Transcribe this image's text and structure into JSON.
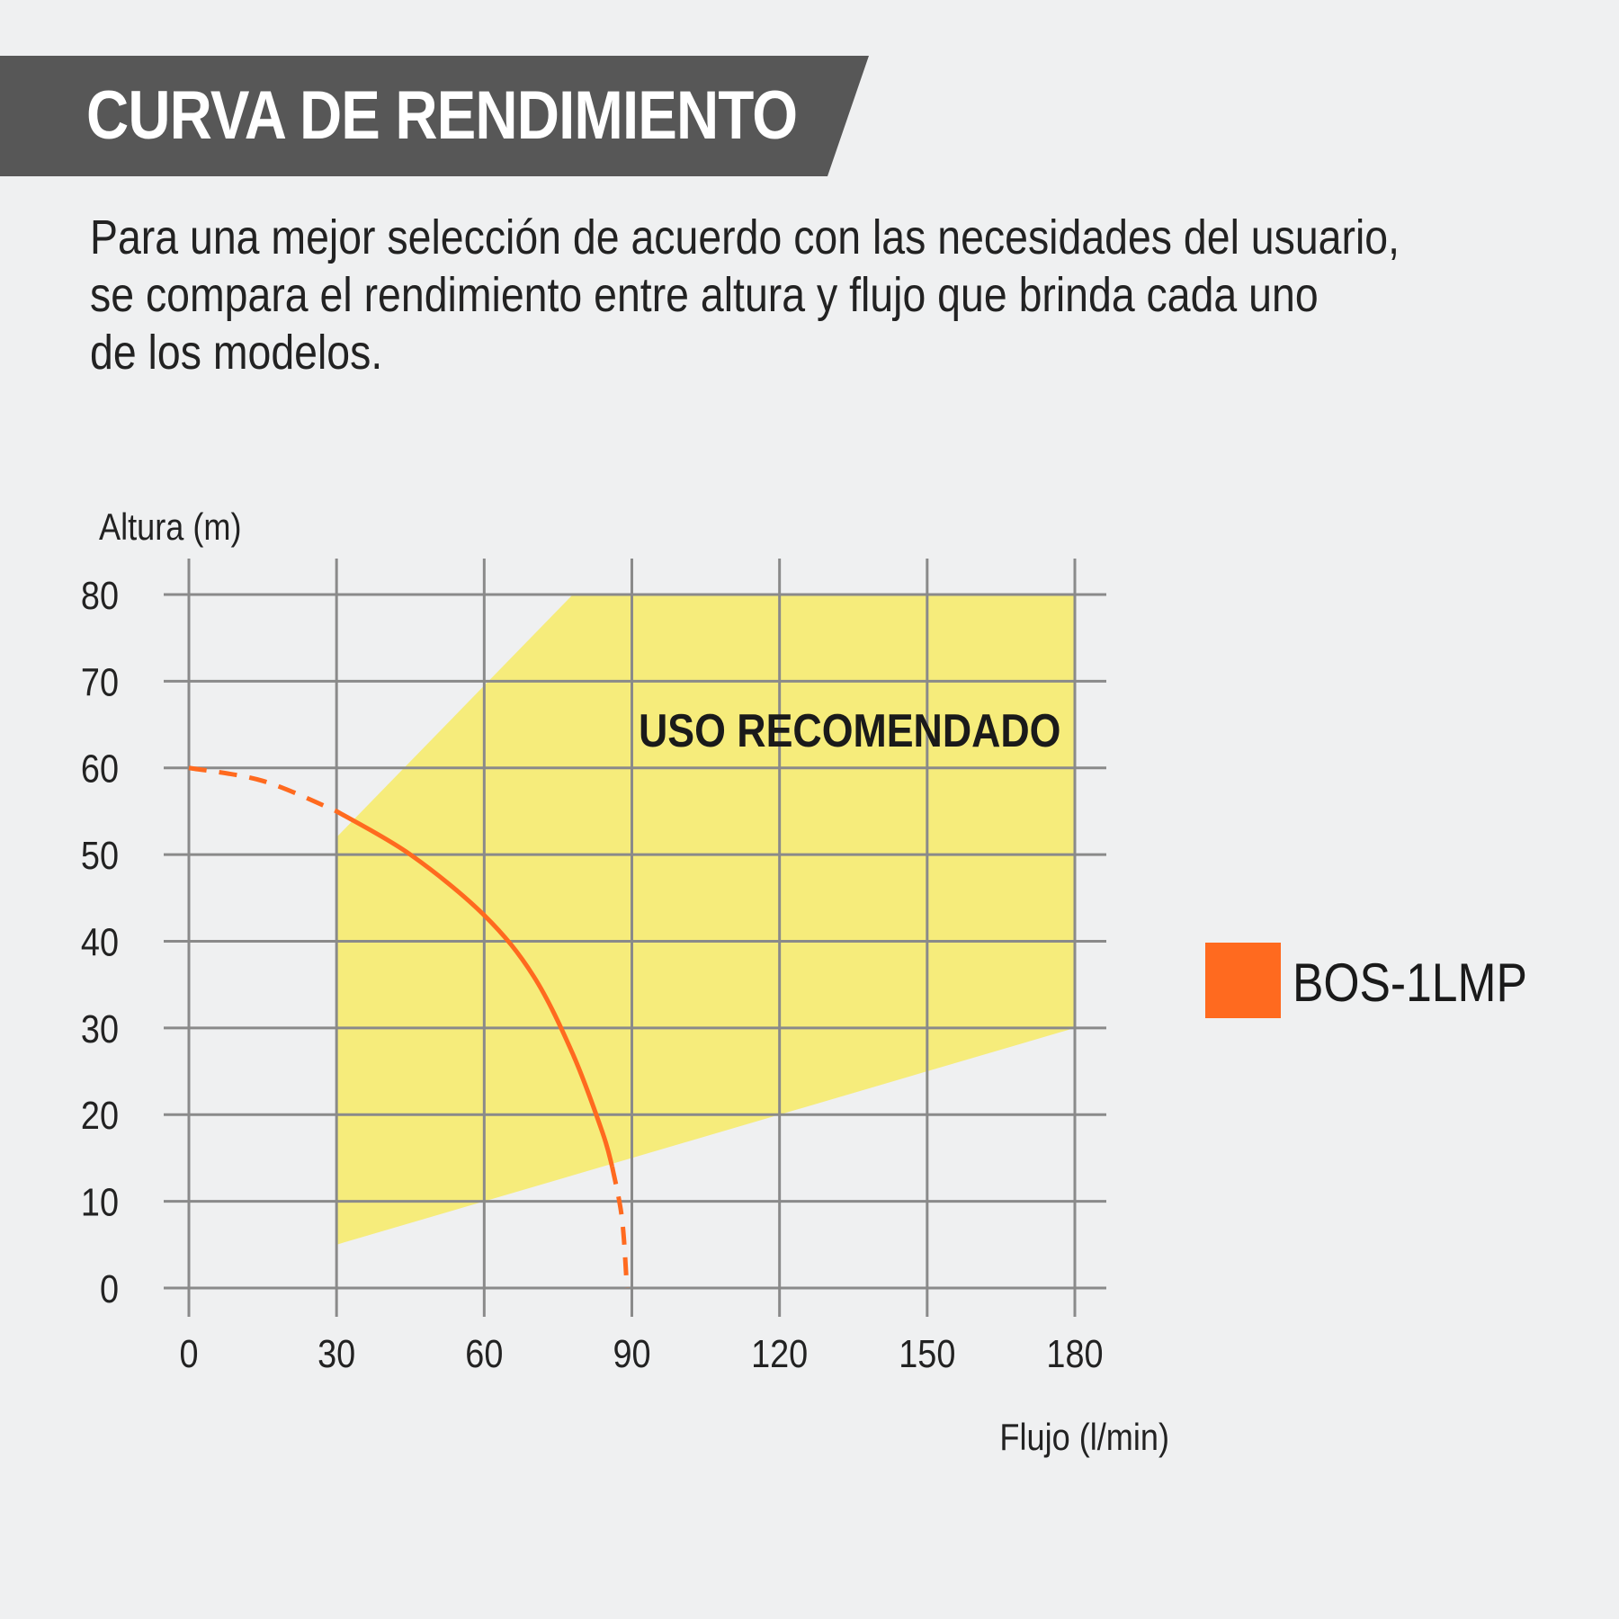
{
  "header": {
    "title": "CURVA DE RENDIMIENTO",
    "background": "#575757"
  },
  "intro": {
    "lines": [
      "Para una mejor selección de acuerdo con las necesidades del usuario,",
      "se compara el rendimiento entre altura y flujo que brinda cada uno",
      "de los modelos."
    ]
  },
  "chart_data": {
    "type": "line",
    "title": "",
    "xlabel": "Flujo (l/min)",
    "ylabel": "Altura (m)",
    "xlim": [
      0,
      180
    ],
    "ylim": [
      0,
      80
    ],
    "x_ticks": [
      "0",
      "30",
      "60",
      "90",
      "120",
      "150",
      "180"
    ],
    "y_ticks": [
      "0",
      "10",
      "20",
      "30",
      "40",
      "50",
      "60",
      "70",
      "80"
    ],
    "grid": true,
    "legend_position": "right",
    "recommended_region": {
      "label": "USO RECOMENDADO",
      "color": "#f6ec7b",
      "polygon": [
        [
          30,
          5
        ],
        [
          30,
          52
        ],
        [
          78,
          80
        ],
        [
          180,
          80
        ],
        [
          180,
          30
        ]
      ]
    },
    "series": [
      {
        "name": "BOS-1LMP",
        "color": "#ff6a1f",
        "points": [
          [
            0,
            60
          ],
          [
            15,
            58.5
          ],
          [
            30,
            55
          ],
          [
            45,
            50
          ],
          [
            60,
            43
          ],
          [
            70,
            36
          ],
          [
            78,
            27
          ],
          [
            84,
            18
          ],
          [
            86,
            14
          ],
          [
            88,
            8
          ],
          [
            89,
            0
          ]
        ],
        "solid_range": [
          30,
          86
        ]
      }
    ]
  }
}
